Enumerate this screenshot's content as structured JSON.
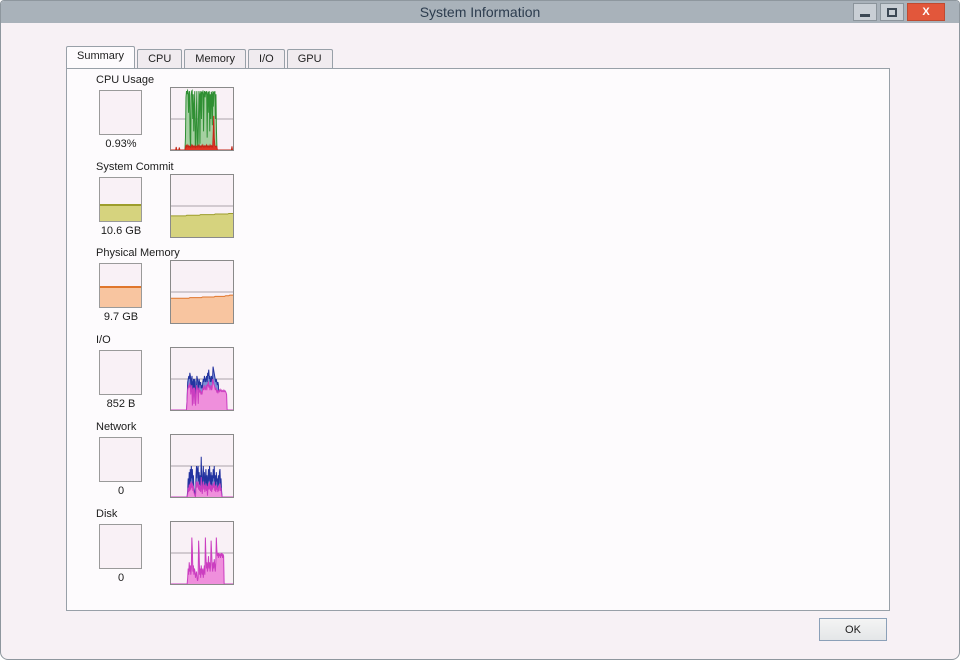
{
  "window": {
    "title": "System Information",
    "close_glyph": "X"
  },
  "tabs": [
    {
      "label": "Summary",
      "active": true
    },
    {
      "label": "CPU",
      "active": false
    },
    {
      "label": "Memory",
      "active": false
    },
    {
      "label": "I/O",
      "active": false
    },
    {
      "label": "GPU",
      "active": false
    }
  ],
  "ok_label": "OK",
  "colors": {
    "gridline": "#aaa2aa",
    "graph_bg": "#f9f1f6",
    "titlebar": "#a9b2ba",
    "close_button": "#e2573b"
  },
  "sections": [
    {
      "key": "cpu",
      "label": "CPU Usage",
      "value": "0.93%",
      "mini": {
        "fill_percent": 0,
        "fill": "",
        "stroke": ""
      },
      "series": [
        {
          "name": "cpu-total",
          "fill": "#a6d0a2",
          "stroke": "#2f8f33",
          "values": [
            0,
            0,
            0,
            0,
            0,
            0,
            0,
            0,
            0,
            0,
            0,
            0,
            0,
            0,
            0,
            0,
            0,
            0,
            0,
            0,
            0,
            0,
            0,
            0,
            0,
            0,
            0,
            0,
            0.2,
            0.85,
            0.95,
            0.9,
            0.96,
            0.94,
            0.6,
            0.9,
            0.95,
            0.2,
            0,
            0.88,
            0.95,
            0.96,
            0.5,
            0.9,
            0.3,
            0.7,
            0.95,
            0.1,
            0,
            0.6,
            0.95,
            0.2,
            0,
            0.4,
            0.95,
            0.9,
            0.1,
            0.9,
            0.95,
            0.5,
            0.94,
            0.9,
            0.96,
            0.3,
            0.9,
            0.95,
            0.85,
            0.94,
            0.9,
            0.95,
            0.2,
            0.9,
            0.94,
            0.6,
            0.95,
            0.3,
            0.9,
            0.5,
            0.94,
            0.9,
            0.4,
            0.95,
            0.7,
            0.94,
            0.9,
            0.95,
            0.5,
            0.9,
            0.3,
            0,
            0,
            0,
            0,
            0,
            0,
            0,
            0,
            0,
            0,
            0,
            0,
            0,
            0,
            0,
            0,
            0,
            0,
            0,
            0,
            0,
            0,
            0,
            0,
            0,
            0,
            0,
            0,
            0,
            0,
            0,
            0
          ]
        },
        {
          "name": "cpu-kernel",
          "fill": "#e03525",
          "stroke": "#c42718",
          "values": [
            0,
            0,
            0,
            0,
            0,
            0,
            0,
            0,
            0,
            0,
            0.05,
            0,
            0,
            0,
            0,
            0,
            0.04,
            0,
            0,
            0,
            0,
            0,
            0,
            0,
            0,
            0,
            0,
            0,
            0.05,
            0.07,
            0.05,
            0.08,
            0.06,
            0.05,
            0.07,
            0.05,
            0.06,
            0.05,
            0.04,
            0.06,
            0.08,
            0.05,
            0.07,
            0.05,
            0.06,
            0.05,
            0.07,
            0.04,
            0.05,
            0.06,
            0.05,
            0.07,
            0.05,
            0.06,
            0.08,
            0.05,
            0.06,
            0.05,
            0.07,
            0.05,
            0.06,
            0.08,
            0.05,
            0.06,
            0.05,
            0.07,
            0.06,
            0.05,
            0.08,
            0.06,
            0.05,
            0.07,
            0.05,
            0.06,
            0.05,
            0.08,
            0.06,
            0.05,
            0.07,
            0.06,
            0.05,
            0.25,
            0.55,
            0.2,
            0.08,
            0.06,
            0.05,
            0.06,
            0.05,
            0,
            0,
            0,
            0,
            0,
            0,
            0,
            0,
            0,
            0,
            0,
            0,
            0,
            0,
            0,
            0,
            0,
            0,
            0,
            0,
            0,
            0,
            0,
            0,
            0,
            0,
            0,
            0,
            0.06,
            0,
            0
          ]
        }
      ]
    },
    {
      "key": "commit",
      "label": "System Commit",
      "value": "10.6 GB",
      "mini": {
        "fill_percent": 40,
        "fill": "#d6d37e",
        "stroke": "#9d9d2c"
      },
      "series": [
        {
          "name": "commit-charge",
          "fill": "#d6d37e",
          "stroke": "#9d9d2c",
          "values": [
            0.34,
            0.34,
            0.34,
            0.34,
            0.34,
            0.34,
            0.34,
            0.34,
            0.34,
            0.34,
            0.34,
            0.34,
            0.34,
            0.34,
            0.34,
            0.35,
            0.35,
            0.35,
            0.35,
            0.35,
            0.35,
            0.35,
            0.35,
            0.35,
            0.35,
            0.35,
            0.35,
            0.35,
            0.36,
            0.36,
            0.36,
            0.36,
            0.36,
            0.36,
            0.36,
            0.36,
            0.36,
            0.36,
            0.36,
            0.36,
            0.36,
            0.36,
            0.37,
            0.37,
            0.37,
            0.37,
            0.37,
            0.37,
            0.37,
            0.37,
            0.37,
            0.37,
            0.37,
            0.37,
            0.37,
            0.38,
            0.38,
            0.38,
            0.38,
            0.38
          ]
        }
      ]
    },
    {
      "key": "physical",
      "label": "Physical Memory",
      "value": "9.7 GB",
      "mini": {
        "fill_percent": 50,
        "fill": "#f8c5a0",
        "stroke": "#e0762c"
      },
      "series": [
        {
          "name": "memory-used",
          "fill": "#f8c5a0",
          "stroke": "#e0762c",
          "values": [
            0.4,
            0.4,
            0.4,
            0.4,
            0.4,
            0.4,
            0.4,
            0.4,
            0.4,
            0.4,
            0.4,
            0.4,
            0.4,
            0.4,
            0.4,
            0.4,
            0.4,
            0.4,
            0.41,
            0.41,
            0.41,
            0.41,
            0.41,
            0.41,
            0.41,
            0.41,
            0.41,
            0.41,
            0.41,
            0.41,
            0.42,
            0.42,
            0.42,
            0.42,
            0.42,
            0.42,
            0.42,
            0.42,
            0.42,
            0.42,
            0.42,
            0.42,
            0.43,
            0.43,
            0.43,
            0.43,
            0.43,
            0.43,
            0.43,
            0.43,
            0.43,
            0.43,
            0.44,
            0.44,
            0.44,
            0.44,
            0.45,
            0.45,
            0.45,
            0.45
          ]
        }
      ]
    },
    {
      "key": "io",
      "label": "I/O",
      "value": "852 B",
      "mini": {
        "fill_percent": 0,
        "fill": "",
        "stroke": ""
      },
      "series": [
        {
          "name": "io-total",
          "fill": "#7b8fd4",
          "stroke": "#2333a0",
          "values": [
            0,
            0,
            0,
            0,
            0,
            0,
            0,
            0,
            0,
            0,
            0,
            0,
            0,
            0,
            0,
            0,
            0,
            0,
            0,
            0,
            0,
            0,
            0,
            0,
            0,
            0,
            0,
            0,
            0,
            0,
            0.2,
            0.45,
            0.5,
            0.55,
            0.5,
            0.6,
            0.55,
            0.35,
            0.5,
            0.55,
            0.1,
            0.45,
            0.5,
            0.15,
            0.5,
            0.45,
            0.1,
            0.3,
            0.55,
            0.5,
            0.45,
            0.15,
            0.5,
            0.45,
            0.4,
            0.45,
            0.35,
            0.4,
            0.35,
            0.45,
            0.5,
            0.45,
            0.55,
            0.5,
            0.45,
            0.5,
            0.55,
            0.45,
            0.6,
            0.55,
            0.65,
            0.5,
            0.55,
            0.45,
            0.5,
            0.55,
            0.45,
            0.5,
            0.7,
            0.65,
            0.6,
            0.55,
            0.5,
            0.45,
            0.5,
            0.45,
            0.4,
            0.45,
            0.4,
            0,
            0,
            0,
            0,
            0,
            0,
            0,
            0,
            0,
            0,
            0,
            0,
            0,
            0,
            0,
            0,
            0,
            0,
            0,
            0,
            0,
            0,
            0,
            0,
            0,
            0,
            0
          ]
        },
        {
          "name": "io-other",
          "fill": "#ef8fdc",
          "stroke": "#cb3ec0",
          "values": [
            0,
            0,
            0,
            0,
            0,
            0,
            0,
            0,
            0,
            0,
            0,
            0,
            0,
            0,
            0,
            0,
            0,
            0,
            0,
            0,
            0,
            0,
            0,
            0,
            0,
            0,
            0,
            0,
            0,
            0,
            0.14,
            0.32,
            0.36,
            0.4,
            0.36,
            0.42,
            0.4,
            0.25,
            0.36,
            0.4,
            0.07,
            0.32,
            0.36,
            0.1,
            0.36,
            0.32,
            0.07,
            0.21,
            0.4,
            0.36,
            0.32,
            0.1,
            0.36,
            0.32,
            0.28,
            0.32,
            0.25,
            0.28,
            0.25,
            0.32,
            0.36,
            0.32,
            0.4,
            0.36,
            0.32,
            0.36,
            0.4,
            0.32,
            0.42,
            0.4,
            0.46,
            0.36,
            0.4,
            0.32,
            0.36,
            0.4,
            0.32,
            0.36,
            0.5,
            0.46,
            0.42,
            0.4,
            0.36,
            0.32,
            0.36,
            0.32,
            0.28,
            0.32,
            0.28,
            0.3,
            0.32,
            0.3,
            0.33,
            0.31,
            0.3,
            0.32,
            0.3,
            0.31,
            0.3,
            0.32,
            0.3,
            0.31,
            0.3,
            0.28,
            0.25,
            0,
            0,
            0,
            0,
            0,
            0,
            0,
            0,
            0,
            0,
            0,
            0
          ]
        }
      ]
    },
    {
      "key": "network",
      "label": "Network",
      "value": "0",
      "mini": {
        "fill_percent": 0,
        "fill": "",
        "stroke": ""
      },
      "series": [
        {
          "name": "network-total",
          "fill": "#7b8fd4",
          "stroke": "#2333a0",
          "values": [
            0,
            0,
            0,
            0,
            0,
            0,
            0,
            0,
            0,
            0,
            0,
            0,
            0,
            0,
            0,
            0,
            0,
            0,
            0,
            0,
            0,
            0,
            0,
            0,
            0,
            0,
            0,
            0,
            0,
            0,
            0,
            0,
            0.1,
            0.3,
            0.15,
            0.4,
            0.2,
            0.45,
            0.25,
            0.5,
            0.3,
            0.45,
            0.2,
            0.35,
            0.15,
            0.1,
            0.05,
            0,
            0.35,
            0.5,
            0.3,
            0.45,
            0.5,
            0.25,
            0.4,
            0.2,
            0.35,
            0.15,
            0.65,
            0.3,
            0.1,
            0.35,
            0.5,
            0.25,
            0.4,
            0.15,
            0.3,
            0.45,
            0.2,
            0.35,
            0.05,
            0.3,
            0.45,
            0.25,
            0.5,
            0.3,
            0.2,
            0.4,
            0.15,
            0.35,
            0.25,
            0.45,
            0.3,
            0.5,
            0.2,
            0.35,
            0.15,
            0.4,
            0.25,
            0.3,
            0.15,
            0.35,
            0.2,
            0.4,
            0.45,
            0.2,
            0.3,
            0.1,
            0,
            0,
            0,
            0,
            0,
            0,
            0,
            0,
            0,
            0,
            0,
            0,
            0,
            0,
            0,
            0,
            0,
            0,
            0,
            0,
            0,
            0
          ]
        },
        {
          "name": "network-other",
          "fill": "#ef8fdc",
          "stroke": "#cb3ec0",
          "values": [
            0,
            0,
            0,
            0,
            0,
            0,
            0,
            0,
            0,
            0,
            0,
            0,
            0,
            0,
            0,
            0,
            0,
            0,
            0,
            0,
            0,
            0,
            0,
            0,
            0,
            0,
            0,
            0,
            0,
            0,
            0,
            0,
            0.05,
            0.15,
            0.08,
            0.2,
            0.1,
            0.22,
            0.12,
            0.25,
            0.15,
            0.22,
            0.1,
            0.18,
            0.08,
            0.05,
            0.02,
            0,
            0.18,
            0.25,
            0.15,
            0.22,
            0.25,
            0.12,
            0.2,
            0.1,
            0.18,
            0.08,
            0.32,
            0.15,
            0.05,
            0.18,
            0.25,
            0.12,
            0.2,
            0.08,
            0.15,
            0.22,
            0.1,
            0.18,
            0.02,
            0.15,
            0.22,
            0.12,
            0.25,
            0.15,
            0.1,
            0.2,
            0.08,
            0.18,
            0.12,
            0.22,
            0.15,
            0.25,
            0.1,
            0.18,
            0.08,
            0.2,
            0.12,
            0.15,
            0.08,
            0.18,
            0.1,
            0.2,
            0.22,
            0.1,
            0.15,
            0.05,
            0,
            0,
            0,
            0,
            0,
            0,
            0,
            0,
            0,
            0,
            0,
            0,
            0,
            0,
            0,
            0,
            0,
            0,
            0,
            0,
            0,
            0
          ]
        }
      ]
    },
    {
      "key": "disk",
      "label": "Disk",
      "value": "0",
      "mini": {
        "fill_percent": 0,
        "fill": "",
        "stroke": ""
      },
      "series": [
        {
          "name": "disk-total",
          "fill": "#ef8fdc",
          "stroke": "#cb3ec0",
          "values": [
            0,
            0,
            0,
            0,
            0,
            0,
            0,
            0,
            0,
            0,
            0,
            0,
            0,
            0,
            0,
            0,
            0,
            0,
            0,
            0,
            0,
            0,
            0,
            0,
            0,
            0,
            0,
            0,
            0,
            0,
            0,
            0,
            0.1,
            0.25,
            0.15,
            0.35,
            0.2,
            0.3,
            0.15,
            0.25,
            0.75,
            0.55,
            0.2,
            0.3,
            0.15,
            0.25,
            0.2,
            0.1,
            0.15,
            0.2,
            0.1,
            0.05,
            0.1,
            0.7,
            0.5,
            0.15,
            0.25,
            0.1,
            0.3,
            0.2,
            0.15,
            0.25,
            0.1,
            0.2,
            0.3,
            0.15,
            0.75,
            0.45,
            0.25,
            0.35,
            0.2,
            0.3,
            0.45,
            0.25,
            0.35,
            0.2,
            0.3,
            0.7,
            0.5,
            0.3,
            0.2,
            0.35,
            0.25,
            0.4,
            0.3,
            0.2,
            0.35,
            0.75,
            0.55,
            0.45,
            0.5,
            0.42,
            0.5,
            0.45,
            0.48,
            0.42,
            0.5,
            0.45,
            0.5,
            0.42,
            0.48,
            0.45,
            0,
            0,
            0,
            0,
            0,
            0,
            0,
            0,
            0,
            0,
            0,
            0,
            0,
            0,
            0,
            0,
            0,
            0
          ]
        }
      ]
    }
  ]
}
